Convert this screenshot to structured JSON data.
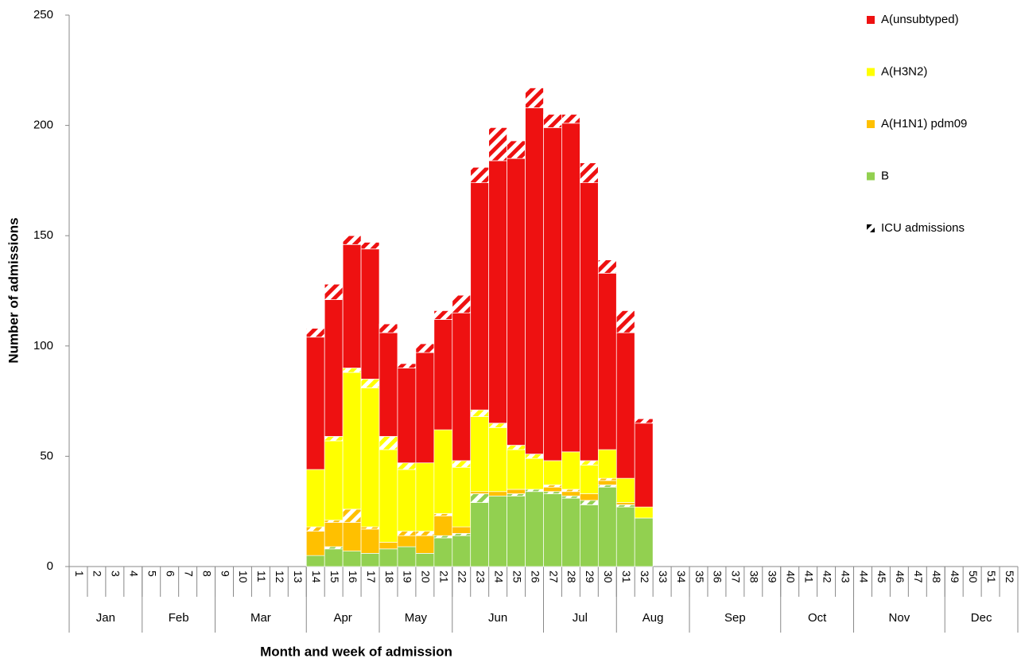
{
  "chart_data": {
    "type": "stacked-bar",
    "y_label": "Number of admissions",
    "x_label": "Month and week of admission",
    "ylim": [
      0,
      250
    ],
    "yticks": [
      0,
      50,
      100,
      150,
      200,
      250
    ],
    "legend_position": "top-right",
    "icu_legend": "ICU admissions",
    "groups": [
      {
        "name": "Jan",
        "categories": [
          "1",
          "2",
          "3",
          "4"
        ]
      },
      {
        "name": "Feb",
        "categories": [
          "5",
          "6",
          "7",
          "8"
        ]
      },
      {
        "name": "Mar",
        "categories": [
          "9",
          "10",
          "11",
          "12",
          "13"
        ]
      },
      {
        "name": "Apr",
        "categories": [
          "14",
          "15",
          "16",
          "17"
        ]
      },
      {
        "name": "May",
        "categories": [
          "18",
          "19",
          "20",
          "21"
        ]
      },
      {
        "name": "Jun",
        "categories": [
          "22",
          "23",
          "24",
          "25",
          "26"
        ]
      },
      {
        "name": "Jul",
        "categories": [
          "27",
          "28",
          "29",
          "30"
        ]
      },
      {
        "name": "Aug",
        "categories": [
          "31",
          "32",
          "33",
          "34"
        ]
      },
      {
        "name": "Sep",
        "categories": [
          "35",
          "36",
          "37",
          "38",
          "39"
        ]
      },
      {
        "name": "Oct",
        "categories": [
          "40",
          "41",
          "42",
          "43"
        ]
      },
      {
        "name": "Nov",
        "categories": [
          "44",
          "45",
          "46",
          "47",
          "48"
        ]
      },
      {
        "name": "Dec",
        "categories": [
          "49",
          "50",
          "51",
          "52"
        ]
      }
    ],
    "series": [
      {
        "name": "A(unsubtyped)",
        "color": "#ee1111",
        "values": [
          0,
          0,
          0,
          0,
          0,
          0,
          0,
          0,
          0,
          0,
          0,
          0,
          0,
          60,
          62,
          56,
          59,
          47,
          43,
          50,
          50,
          67,
          103,
          119,
          130,
          157,
          151,
          149,
          126,
          80,
          66,
          38,
          0,
          0,
          0,
          0,
          0,
          0,
          0,
          0,
          0,
          0,
          0,
          0,
          0,
          0,
          0,
          0,
          0,
          0,
          0,
          0
        ],
        "icu_values": [
          0,
          0,
          0,
          0,
          0,
          0,
          0,
          0,
          0,
          0,
          0,
          0,
          0,
          4,
          7,
          4,
          3,
          4,
          2,
          4,
          4,
          8,
          7,
          15,
          8,
          9,
          6,
          4,
          9,
          6,
          10,
          2,
          0,
          0,
          0,
          0,
          0,
          0,
          0,
          0,
          0,
          0,
          0,
          0,
          0,
          0,
          0,
          0,
          0,
          0,
          0,
          0
        ]
      },
      {
        "name": "A(H3N2)",
        "color": "#ffff00",
        "values": [
          0,
          0,
          0,
          0,
          0,
          0,
          0,
          0,
          0,
          0,
          0,
          0,
          0,
          26,
          36,
          62,
          63,
          42,
          28,
          31,
          38,
          27,
          34,
          29,
          18,
          14,
          11,
          17,
          13,
          13,
          11,
          5,
          0,
          0,
          0,
          0,
          0,
          0,
          0,
          0,
          0,
          0,
          0,
          0,
          0,
          0,
          0,
          0,
          0,
          0,
          0,
          0
        ],
        "icu_values": [
          0,
          0,
          0,
          0,
          0,
          0,
          0,
          0,
          0,
          0,
          0,
          0,
          0,
          0,
          2,
          2,
          4,
          6,
          3,
          0,
          0,
          3,
          3,
          2,
          2,
          2,
          0,
          0,
          2,
          0,
          0,
          0,
          0,
          0,
          0,
          0,
          0,
          0,
          0,
          0,
          0,
          0,
          0,
          0,
          0,
          0,
          0,
          0,
          0,
          0,
          0,
          0
        ]
      },
      {
        "name": "A(H1N1) pdm09",
        "color": "#ffc000",
        "values": [
          0,
          0,
          0,
          0,
          0,
          0,
          0,
          0,
          0,
          0,
          0,
          0,
          0,
          11,
          11,
          13,
          11,
          3,
          5,
          8,
          9,
          3,
          1,
          2,
          2,
          0,
          2,
          2,
          3,
          2,
          1,
          0,
          0,
          0,
          0,
          0,
          0,
          0,
          0,
          0,
          0,
          0,
          0,
          0,
          0,
          0,
          0,
          0,
          0,
          0,
          0,
          0
        ],
        "icu_values": [
          0,
          0,
          0,
          0,
          0,
          0,
          0,
          0,
          0,
          0,
          0,
          0,
          0,
          2,
          1,
          6,
          1,
          0,
          2,
          2,
          1,
          0,
          0,
          0,
          0,
          0,
          1,
          1,
          0,
          1,
          0,
          0,
          0,
          0,
          0,
          0,
          0,
          0,
          0,
          0,
          0,
          0,
          0,
          0,
          0,
          0,
          0,
          0,
          0,
          0,
          0,
          0
        ]
      },
      {
        "name": "B",
        "color": "#92d050",
        "values": [
          0,
          0,
          0,
          0,
          0,
          0,
          0,
          0,
          0,
          0,
          0,
          0,
          0,
          5,
          8,
          7,
          6,
          8,
          9,
          6,
          13,
          14,
          29,
          32,
          32,
          34,
          33,
          31,
          28,
          36,
          27,
          22,
          0,
          0,
          0,
          0,
          0,
          0,
          0,
          0,
          0,
          0,
          0,
          0,
          0,
          0,
          0,
          0,
          0,
          0,
          0,
          0
        ],
        "icu_values": [
          0,
          0,
          0,
          0,
          0,
          0,
          0,
          0,
          0,
          0,
          0,
          0,
          0,
          0,
          1,
          0,
          0,
          0,
          0,
          0,
          1,
          1,
          4,
          0,
          1,
          1,
          1,
          1,
          2,
          1,
          1,
          0,
          0,
          0,
          0,
          0,
          0,
          0,
          0,
          0,
          0,
          0,
          0,
          0,
          0,
          0,
          0,
          0,
          0,
          0,
          0,
          0
        ]
      }
    ]
  }
}
